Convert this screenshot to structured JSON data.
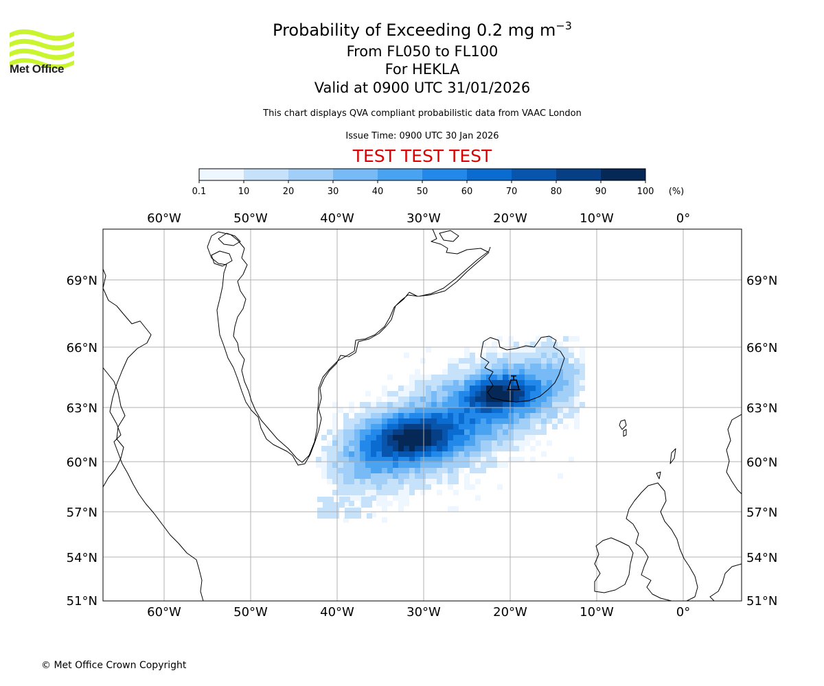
{
  "header": {
    "title_main": "Probability of Exceeding 0.2 mg m",
    "title_superscript": "−3",
    "level_range": "From FL050 to FL100",
    "volcano_line": "For HEKLA",
    "valid_time": "Valid at 0900 UTC 31/01/2026",
    "description": "This chart displays QVA compliant probabilistic data from VAAC London",
    "issue_time": "Issue Time: 0900 UTC 30 Jan 2026",
    "test_banner": "TEST TEST TEST"
  },
  "logo": {
    "text": "Met Office",
    "color": "#c8f52e"
  },
  "colorbar": {
    "ticks": [
      "0.1",
      "10",
      "20",
      "30",
      "40",
      "50",
      "60",
      "70",
      "80",
      "90",
      "100"
    ],
    "unit": "(%)",
    "colors": [
      "#eef6ff",
      "#c6e2fb",
      "#a2cff7",
      "#77baf5",
      "#4aa3f0",
      "#2289ea",
      "#0a6bd0",
      "#0855ad",
      "#073f86",
      "#062857"
    ]
  },
  "map": {
    "lon_labels": [
      "60°W",
      "50°W",
      "40°W",
      "30°W",
      "20°W",
      "10°W",
      "0°"
    ],
    "lat_labels": [
      "69°N",
      "66°N",
      "63°N",
      "60°N",
      "57°N",
      "54°N",
      "51°N"
    ],
    "volcano_icon": "volcano-icon",
    "coastline_color": "#000000",
    "grid_color": "#b0b0b0"
  },
  "footer": {
    "copyright": "© Met Office Crown Copyright"
  }
}
